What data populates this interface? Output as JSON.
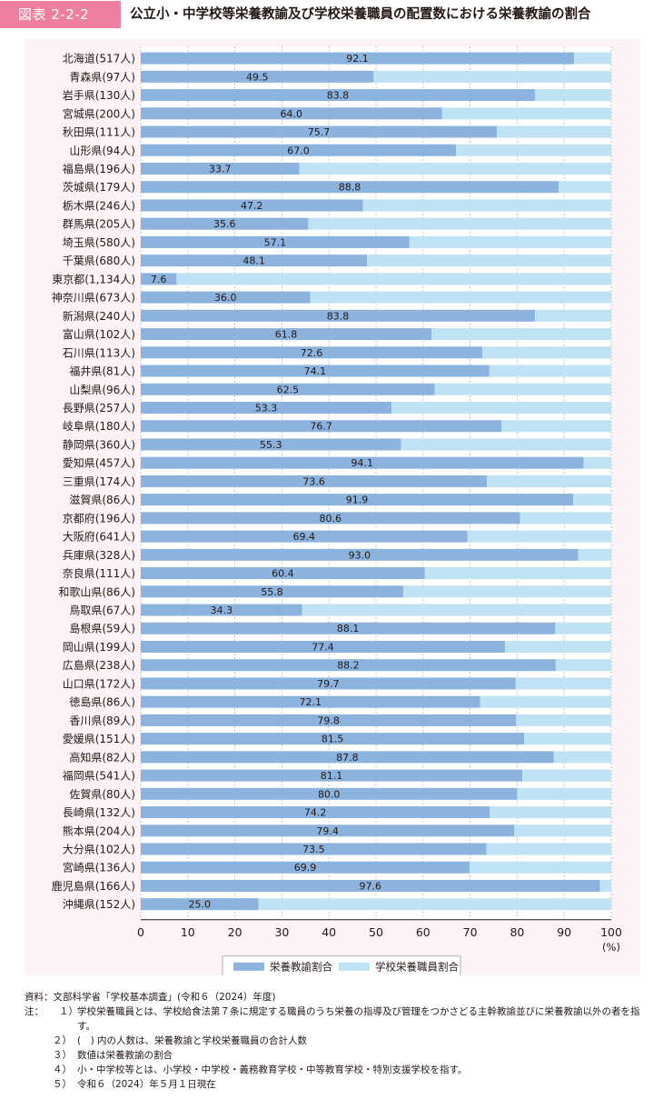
{
  "header": {
    "badge": "図表 2-2-2",
    "title": "公立小・中学校等栄養教諭及び学校栄養職員の配置数における栄養教諭の割合"
  },
  "colors": {
    "primary": "#8cb2de",
    "secondary": "#bfe3f5",
    "badge": "#ee7fa0",
    "panel": "#fdf3f6"
  },
  "chart_data": {
    "type": "bar",
    "orientation": "horizontal",
    "stacked": true,
    "categories": [
      "北海道(517人)",
      "青森県(97人)",
      "岩手県(130人)",
      "宮城県(200人)",
      "秋田県(111人)",
      "山形県(94人)",
      "福島県(196人)",
      "茨城県(179人)",
      "栃木県(246人)",
      "群馬県(205人)",
      "埼玉県(580人)",
      "千葉県(680人)",
      "東京都(1,134人)",
      "神奈川県(673人)",
      "新潟県(240人)",
      "富山県(102人)",
      "石川県(113人)",
      "福井県(81人)",
      "山梨県(96人)",
      "長野県(257人)",
      "岐阜県(180人)",
      "静岡県(360人)",
      "愛知県(457人)",
      "三重県(174人)",
      "滋賀県(86人)",
      "京都府(196人)",
      "大阪府(641人)",
      "兵庫県(328人)",
      "奈良県(111人)",
      "和歌山県(86人)",
      "鳥取県(67人)",
      "島根県(59人)",
      "岡山県(199人)",
      "広島県(238人)",
      "山口県(172人)",
      "徳島県(86人)",
      "香川県(89人)",
      "愛媛県(151人)",
      "高知県(82人)",
      "福岡県(541人)",
      "佐賀県(80人)",
      "長崎県(132人)",
      "熊本県(204人)",
      "大分県(102人)",
      "宮崎県(136人)",
      "鹿児島県(166人)",
      "沖縄県(152人)"
    ],
    "series": [
      {
        "name": "栄養教諭割合",
        "values": [
          92.1,
          49.5,
          83.8,
          64.0,
          75.7,
          67.0,
          33.7,
          88.8,
          47.2,
          35.6,
          57.1,
          48.1,
          7.6,
          36.0,
          83.8,
          61.8,
          72.6,
          74.1,
          62.5,
          53.3,
          76.7,
          55.3,
          94.1,
          73.6,
          91.9,
          80.6,
          69.4,
          93.0,
          60.4,
          55.8,
          34.3,
          88.1,
          77.4,
          88.2,
          79.7,
          72.1,
          79.8,
          81.5,
          87.8,
          81.1,
          80.0,
          74.2,
          79.4,
          73.5,
          69.9,
          97.6,
          25.0
        ]
      },
      {
        "name": "学校栄養職員割合",
        "values": [
          7.9,
          50.5,
          16.2,
          36.0,
          24.3,
          33.0,
          66.3,
          11.2,
          52.8,
          64.4,
          42.9,
          51.9,
          92.4,
          64.0,
          16.2,
          38.2,
          27.4,
          25.9,
          37.5,
          46.7,
          23.3,
          44.7,
          5.9,
          26.4,
          8.1,
          19.4,
          30.6,
          7.0,
          39.6,
          44.2,
          65.7,
          11.9,
          22.6,
          11.8,
          20.3,
          27.9,
          20.2,
          18.5,
          12.2,
          18.9,
          20.0,
          25.8,
          20.6,
          26.5,
          30.1,
          2.4,
          75.0
        ]
      }
    ],
    "data_labels": [
      "92.1",
      "49.5",
      "83.8",
      "64.0",
      "75.7",
      "67.0",
      "33.7",
      "88.8",
      "47.2",
      "35.6",
      "57.1",
      "48.1",
      "7.6",
      "36.0",
      "83.8",
      "61.8",
      "72.6",
      "74.1",
      "62.5",
      "53.3",
      "76.7",
      "55.3",
      "94.1",
      "73.6",
      "91.9",
      "80.6",
      "69.4",
      "93.0",
      "60.4",
      "55.8",
      "34.3",
      "88.1",
      "77.4",
      "88.2",
      "79.7",
      "72.1",
      "79.8",
      "81.5",
      "87.8",
      "81.1",
      "80.0",
      "74.2",
      "79.4",
      "73.5",
      "69.9",
      "97.6",
      "25.0"
    ],
    "xlim": [
      0,
      100
    ],
    "xticks": [
      "0",
      "10",
      "20",
      "30",
      "40",
      "50",
      "60",
      "70",
      "80",
      "90",
      "100"
    ],
    "xunit": "(%)",
    "grid": true,
    "legend_position": "bottom"
  },
  "notes": {
    "source": "資料：文部科学省「学校基本調査」(令和６（2024）年度)",
    "note_prefix": "注：",
    "items": [
      {
        "num": "１）",
        "text": "学校栄養職員とは、学校給食法第７条に規定する職員のうち栄養の指導及び管理をつかさどる主幹教諭並びに栄養教諭以外の者を指す。"
      },
      {
        "num": "２）",
        "text": "(　) 内の人数は、栄養教諭と学校栄養職員の合計人数"
      },
      {
        "num": "３）",
        "text": "数値は栄養教諭の割合"
      },
      {
        "num": "４）",
        "text": "小・中学校等とは、小学校・中学校・義務教育学校・中等教育学校・特別支援学校を指す。"
      },
      {
        "num": "５）",
        "text": "令和６（2024）年５月１日現在"
      }
    ]
  }
}
